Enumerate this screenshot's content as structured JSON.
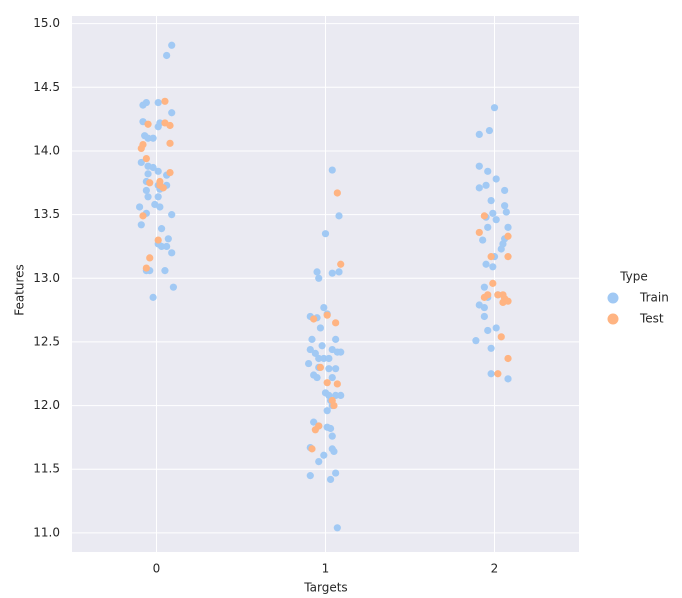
{
  "chart_data": {
    "type": "scatter",
    "xlabel": "Targets",
    "ylabel": "Features",
    "xlim": [
      -0.5,
      2.5
    ],
    "ylim": [
      10.85,
      15.06
    ],
    "xticks": [
      0,
      1,
      2
    ],
    "yticks": [
      {
        "value": 11,
        "label": "11.0"
      },
      11.5,
      {
        "value": 12,
        "label": "12.0"
      },
      12.5,
      {
        "value": 13,
        "label": "13.0"
      },
      13.5,
      {
        "value": 14,
        "label": "14.0"
      },
      14.5,
      {
        "value": 15,
        "label": "15.0"
      }
    ],
    "grid": true,
    "legend_title": "Type",
    "legend": "right",
    "series": [
      {
        "name": "Train",
        "color": "#a1c9f4",
        "x": [
          0.09,
          0.06,
          -0.06,
          -0.08,
          0.01,
          0.09,
          -0.08,
          0.02,
          0.01,
          -0.07,
          -0.05,
          -0.02,
          -0.09,
          -0.05,
          -0.02,
          0.01,
          -0.05,
          0.06,
          -0.06,
          0.01,
          0.06,
          -0.06,
          0.02,
          -0.05,
          0.01,
          -0.01,
          -0.1,
          0.02,
          -0.06,
          0.09,
          -0.09,
          0.03,
          0.07,
          0.01,
          0.03,
          0.06,
          0.09,
          -0.06,
          -0.04,
          0.05,
          -0.02,
          0.1,
          1.04,
          1.0,
          1.08,
          0.95,
          1.04,
          1.08,
          0.96,
          0.99,
          0.91,
          0.95,
          1.01,
          0.97,
          1.06,
          0.92,
          0.98,
          0.91,
          1.04,
          0.94,
          1.07,
          1.09,
          0.96,
          0.99,
          1.02,
          0.9,
          0.96,
          1.02,
          1.06,
          0.93,
          0.95,
          1.04,
          1.0,
          1.02,
          1.06,
          1.09,
          1.03,
          1.04,
          1.01,
          0.93,
          0.96,
          1.03,
          1.01,
          1.04,
          0.91,
          1.04,
          1.05,
          0.99,
          0.96,
          0.91,
          1.06,
          1.03,
          1.07,
          2.0,
          1.91,
          1.97,
          1.91,
          1.96,
          1.91,
          1.95,
          2.01,
          2.06,
          1.98,
          2.06,
          1.99,
          2.07,
          2.01,
          2.08,
          1.95,
          1.96,
          1.93,
          2.06,
          2.05,
          2.04,
          2.0,
          1.95,
          1.99,
          1.94,
          1.96,
          2.02,
          1.91,
          1.94,
          1.94,
          1.96,
          2.01,
          1.89,
          1.98,
          1.98,
          2.08
        ],
        "values": [
          14.83,
          14.75,
          14.38,
          14.36,
          14.38,
          14.3,
          14.23,
          14.22,
          14.19,
          14.12,
          14.1,
          14.1,
          13.91,
          13.88,
          13.87,
          13.84,
          13.82,
          13.81,
          13.76,
          13.73,
          13.73,
          13.69,
          13.7,
          13.64,
          13.64,
          13.58,
          13.56,
          13.56,
          13.51,
          13.5,
          13.42,
          13.39,
          13.31,
          13.27,
          13.25,
          13.25,
          13.2,
          13.06,
          13.06,
          13.06,
          12.85,
          12.93,
          13.85,
          13.35,
          13.49,
          13.05,
          13.04,
          13.05,
          13.0,
          12.77,
          12.7,
          12.69,
          12.72,
          12.61,
          12.52,
          12.52,
          12.47,
          12.44,
          12.44,
          12.41,
          12.42,
          12.42,
          12.37,
          12.37,
          12.37,
          12.33,
          12.3,
          12.29,
          12.29,
          12.24,
          12.22,
          12.22,
          12.1,
          12.08,
          12.08,
          12.08,
          12.04,
          12.0,
          11.96,
          11.87,
          11.84,
          11.82,
          11.83,
          11.76,
          11.67,
          11.66,
          11.64,
          11.61,
          11.56,
          11.45,
          11.47,
          11.42,
          11.04,
          14.34,
          14.13,
          14.16,
          13.88,
          13.84,
          13.71,
          13.73,
          13.78,
          13.69,
          13.61,
          13.57,
          13.51,
          13.52,
          13.46,
          13.4,
          13.48,
          13.4,
          13.3,
          13.31,
          13.27,
          13.23,
          13.17,
          13.11,
          13.09,
          12.93,
          12.85,
          12.87,
          12.79,
          12.77,
          12.7,
          12.59,
          12.61,
          12.51,
          12.45,
          12.25,
          12.21
        ]
      },
      {
        "name": "Test",
        "color": "#ffb482",
        "x": [
          0.05,
          -0.05,
          0.05,
          0.08,
          -0.08,
          -0.09,
          0.08,
          -0.06,
          0.08,
          -0.04,
          0.02,
          0.02,
          0.04,
          -0.08,
          0.01,
          -0.04,
          -0.06,
          1.07,
          1.09,
          1.01,
          0.93,
          1.06,
          0.97,
          1.01,
          1.07,
          1.04,
          1.05,
          0.96,
          0.94,
          0.92,
          1.94,
          1.91,
          1.98,
          2.08,
          2.08,
          1.99,
          1.96,
          1.94,
          2.02,
          2.05,
          2.06,
          2.08,
          2.05,
          2.04,
          2.02,
          2.08
        ],
        "values": [
          14.39,
          14.21,
          14.22,
          14.2,
          14.05,
          14.02,
          14.06,
          13.94,
          13.83,
          13.75,
          13.76,
          13.73,
          13.71,
          13.49,
          13.3,
          13.16,
          13.08,
          13.67,
          13.11,
          12.71,
          12.68,
          12.65,
          12.3,
          12.18,
          12.17,
          12.04,
          12.0,
          11.84,
          11.81,
          11.66,
          13.49,
          13.36,
          13.17,
          13.17,
          13.33,
          12.96,
          12.87,
          12.85,
          12.87,
          12.87,
          12.84,
          12.82,
          12.81,
          12.54,
          12.25,
          12.37
        ]
      }
    ]
  }
}
